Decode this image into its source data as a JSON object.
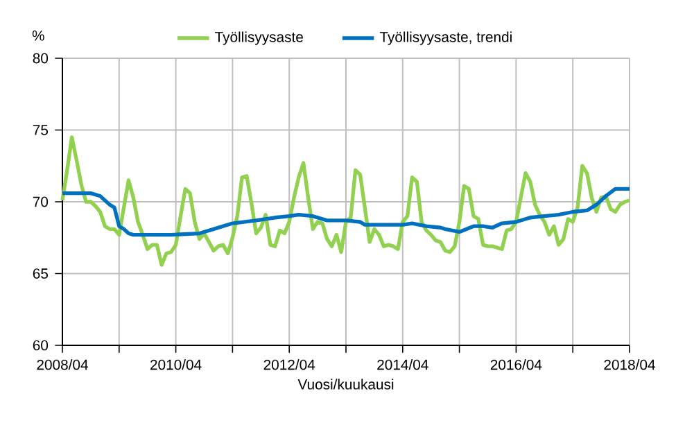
{
  "chart_data": {
    "type": "line",
    "ylabel": "%",
    "xlabel": "Vuosi/kuukausi",
    "x": [
      "2008-04",
      "2008-05",
      "2008-06",
      "2008-07",
      "2008-08",
      "2008-09",
      "2008-10",
      "2008-11",
      "2008-12",
      "2009-01",
      "2009-02",
      "2009-03",
      "2009-04",
      "2009-05",
      "2009-06",
      "2009-07",
      "2009-08",
      "2009-09",
      "2009-10",
      "2009-11",
      "2009-12",
      "2010-01",
      "2010-02",
      "2010-03",
      "2010-04",
      "2010-05",
      "2010-06",
      "2010-07",
      "2010-08",
      "2010-09",
      "2010-10",
      "2010-11",
      "2010-12",
      "2011-01",
      "2011-02",
      "2011-03",
      "2011-04",
      "2011-05",
      "2011-06",
      "2011-07",
      "2011-08",
      "2011-09",
      "2011-10",
      "2011-11",
      "2011-12",
      "2012-01",
      "2012-02",
      "2012-03",
      "2012-04",
      "2012-05",
      "2012-06",
      "2012-07",
      "2012-08",
      "2012-09",
      "2012-10",
      "2012-11",
      "2012-12",
      "2013-01",
      "2013-02",
      "2013-03",
      "2013-04",
      "2013-05",
      "2013-06",
      "2013-07",
      "2013-08",
      "2013-09",
      "2013-10",
      "2013-11",
      "2013-12",
      "2014-01",
      "2014-02",
      "2014-03",
      "2014-04",
      "2014-05",
      "2014-06",
      "2014-07",
      "2014-08",
      "2014-09",
      "2014-10",
      "2014-11",
      "2014-12",
      "2015-01",
      "2015-02",
      "2015-03",
      "2015-04",
      "2015-05",
      "2015-06",
      "2015-07",
      "2015-08",
      "2015-09",
      "2015-10",
      "2015-11",
      "2015-12",
      "2016-01",
      "2016-02",
      "2016-03",
      "2016-04",
      "2016-05",
      "2016-06",
      "2016-07",
      "2016-08",
      "2016-09",
      "2016-10",
      "2016-11",
      "2016-12",
      "2017-01",
      "2017-02",
      "2017-03",
      "2017-04",
      "2017-05",
      "2017-06",
      "2017-07",
      "2017-08",
      "2017-09",
      "2017-10",
      "2017-11",
      "2017-12",
      "2018-01",
      "2018-02",
      "2018-03",
      "2018-04"
    ],
    "series": [
      {
        "name": "Työllisyysaste",
        "color": "#92d050",
        "values": [
          70.1,
          72.2,
          74.5,
          72.9,
          71.2,
          70.0,
          70.0,
          69.7,
          69.3,
          68.3,
          68.1,
          68.1,
          67.7,
          69.6,
          71.5,
          70.3,
          68.6,
          67.7,
          66.7,
          67.0,
          67.0,
          65.6,
          66.4,
          66.5,
          67.0,
          69.0,
          70.9,
          70.6,
          68.6,
          67.4,
          67.8,
          67.2,
          66.6,
          66.9,
          67.0,
          66.4,
          67.5,
          69.0,
          71.7,
          71.8,
          69.9,
          67.8,
          68.2,
          69.1,
          67.0,
          66.9,
          68.0,
          67.8,
          68.6,
          70.3,
          71.7,
          72.7,
          70.3,
          68.1,
          68.6,
          68.5,
          67.4,
          66.9,
          67.7,
          66.5,
          68.6,
          68.9,
          72.2,
          71.9,
          69.6,
          67.2,
          68.1,
          67.7,
          66.9,
          67.0,
          66.9,
          66.7,
          68.6,
          69.0,
          71.7,
          71.4,
          68.6,
          68.0,
          67.7,
          67.3,
          67.2,
          66.6,
          66.5,
          66.9,
          68.6,
          71.1,
          70.9,
          69.0,
          68.8,
          67.0,
          66.9,
          66.9,
          66.8,
          66.7,
          68.0,
          68.1,
          68.6,
          70.3,
          72.0,
          71.4,
          69.8,
          69.1,
          68.6,
          67.7,
          68.3,
          67.0,
          67.4,
          68.8,
          68.6,
          69.6,
          72.5,
          72.0,
          70.3,
          69.3,
          70.3,
          70.4,
          69.5,
          69.3,
          69.8,
          70.0,
          70.1
        ]
      },
      {
        "name": "Työllisyysaste, trendi",
        "color": "#0070c0",
        "x": [
          "2008-04",
          "2008-10",
          "2008-12",
          "2009-01",
          "2009-02",
          "2009-03",
          "2009-04",
          "2009-05",
          "2009-06",
          "2009-07",
          "2010-03",
          "2010-09",
          "2010-12",
          "2011-04",
          "2011-09",
          "2012-01",
          "2012-04",
          "2012-06",
          "2012-09",
          "2012-12",
          "2013-04",
          "2013-07",
          "2013-08",
          "2014-04",
          "2014-06",
          "2014-09",
          "2014-12",
          "2015-01",
          "2015-04",
          "2015-07",
          "2015-09",
          "2015-11",
          "2016-01",
          "2016-04",
          "2016-07",
          "2016-10",
          "2017-01",
          "2017-04",
          "2017-07",
          "2017-09",
          "2017-11",
          "2018-01",
          "2018-04"
        ],
        "values": [
          70.6,
          70.6,
          70.4,
          70.1,
          69.8,
          69.6,
          68.3,
          68.1,
          67.8,
          67.7,
          67.7,
          67.8,
          68.1,
          68.5,
          68.7,
          68.9,
          69.0,
          69.1,
          69.0,
          68.7,
          68.7,
          68.6,
          68.4,
          68.4,
          68.5,
          68.3,
          68.2,
          68.1,
          67.9,
          68.3,
          68.3,
          68.2,
          68.5,
          68.6,
          68.9,
          69.0,
          69.1,
          69.3,
          69.4,
          69.8,
          70.4,
          70.9,
          70.9
        ]
      }
    ],
    "xlim": [
      "2008-04",
      "2018-04"
    ],
    "xticks": [
      {
        "value": "2008-04",
        "label": "2008/04"
      },
      {
        "value": "2009-04",
        "label": null
      },
      {
        "value": "2010-04",
        "label": "2010/04"
      },
      {
        "value": "2011-04",
        "label": null
      },
      {
        "value": "2012-04",
        "label": "2012/04"
      },
      {
        "value": "2013-04",
        "label": null
      },
      {
        "value": "2014-04",
        "label": "2014/04"
      },
      {
        "value": "2015-04",
        "label": null
      },
      {
        "value": "2016-04",
        "label": "2016/04"
      },
      {
        "value": "2017-04",
        "label": null
      },
      {
        "value": "2018-04",
        "label": "2018/04"
      }
    ],
    "ylim": [
      60,
      80
    ],
    "yticks": [
      60,
      65,
      70,
      75,
      80
    ],
    "grid": true,
    "legend": "top",
    "line_style": "solid",
    "marker": "none"
  }
}
